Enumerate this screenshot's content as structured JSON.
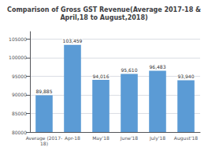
{
  "chart_data": {
    "type": "bar",
    "title": "Comparison of Gross GST Revenue(Average 2017-18 &\nApril,18 to August,2018)",
    "categories": [
      "Average (2017-\n18)",
      "Apr-18",
      "May'18",
      "June'18",
      "July'18",
      "August'18"
    ],
    "values": [
      89885,
      103459,
      94016,
      95610,
      96483,
      93940
    ],
    "value_labels": [
      "89,885",
      "103,459",
      "94,016",
      "95,610",
      "96,483",
      "93,940"
    ],
    "data_labels": true,
    "color": "#5B9BD5",
    "ylim": [
      80000,
      107000
    ],
    "yticks": [
      80000,
      85000,
      90000,
      95000,
      100000,
      105000
    ],
    "grid": true
  }
}
